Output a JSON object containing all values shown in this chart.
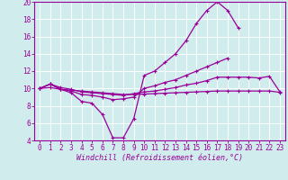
{
  "xlabel": "Windchill (Refroidissement éolien,°C)",
  "x_hours": [
    0,
    1,
    2,
    3,
    4,
    5,
    6,
    7,
    8,
    9,
    10,
    11,
    12,
    13,
    14,
    15,
    16,
    17,
    18,
    19,
    20,
    21,
    22,
    23
  ],
  "line1_y": [
    10.0,
    10.5,
    9.9,
    9.5,
    8.5,
    8.3,
    7.0,
    4.3,
    4.3,
    6.5,
    11.5,
    12.0,
    13.0,
    14.0,
    15.5,
    17.5,
    19.0,
    20.0,
    19.0,
    17.0,
    null,
    null,
    null,
    null
  ],
  "line2_y": [
    10.0,
    10.5,
    9.9,
    9.7,
    9.3,
    9.2,
    9.0,
    8.7,
    8.8,
    9.0,
    10.0,
    10.3,
    10.7,
    11.0,
    11.5,
    12.0,
    12.5,
    13.0,
    13.5,
    null,
    null,
    null,
    null,
    null
  ],
  "line3_y": [
    10.0,
    10.5,
    10.1,
    9.9,
    9.6,
    9.5,
    9.4,
    9.3,
    9.2,
    9.4,
    9.6,
    9.7,
    9.9,
    10.1,
    10.4,
    10.6,
    10.9,
    11.3,
    11.3,
    11.3,
    11.3,
    11.2,
    11.4,
    9.6
  ],
  "line4_y": [
    10.0,
    10.1,
    9.9,
    9.8,
    9.7,
    9.6,
    9.5,
    9.4,
    9.3,
    9.3,
    9.35,
    9.4,
    9.45,
    9.5,
    9.55,
    9.6,
    9.65,
    9.7,
    9.7,
    9.7,
    9.7,
    9.7,
    9.7,
    9.55
  ],
  "line_color": "#990099",
  "bg_color": "#d0ecec",
  "grid_color": "#b8dede",
  "ylim": [
    4,
    20
  ],
  "yticks": [
    4,
    6,
    8,
    10,
    12,
    14,
    16,
    18,
    20
  ],
  "tick_fontsize": 5.5,
  "xlabel_fontsize": 6.0
}
